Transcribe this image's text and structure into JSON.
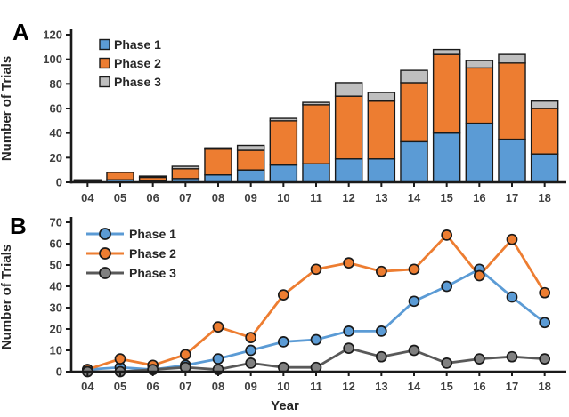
{
  "colors": {
    "phase1_blue": "#5B9BD5",
    "phase2_orange": "#ED7D31",
    "phase3_gray_bar": "#BFBFBF",
    "phase3_gray_line": "#595959",
    "phase3_gray_marker": "#808080",
    "outline_black": "#1a1a1a",
    "tick_text": "#3f3f3f"
  },
  "chart_data": [
    {
      "panel": "A",
      "type": "bar",
      "stacked": true,
      "title": "",
      "ylabel": "Number of Trials",
      "xlabel": "",
      "ylim": [
        0,
        120
      ],
      "ytick_step": 20,
      "grid": false,
      "legend_position": "top-left-inside",
      "categories": [
        "04",
        "05",
        "06",
        "07",
        "08",
        "09",
        "10",
        "11",
        "12",
        "13",
        "14",
        "15",
        "16",
        "17",
        "18"
      ],
      "series": [
        {
          "name": "Phase 1",
          "color": "#5B9BD5",
          "values": [
            1,
            2,
            1,
            3,
            6,
            10,
            14,
            15,
            19,
            19,
            33,
            40,
            48,
            35,
            23
          ]
        },
        {
          "name": "Phase 2",
          "color": "#ED7D31",
          "values": [
            1,
            6,
            3,
            8,
            21,
            16,
            36,
            48,
            51,
            47,
            48,
            64,
            45,
            62,
            37
          ]
        },
        {
          "name": "Phase 3",
          "color": "#BFBFBF",
          "values": [
            0,
            0,
            1,
            2,
            1,
            4,
            2,
            2,
            11,
            7,
            10,
            4,
            6,
            7,
            6
          ]
        }
      ]
    },
    {
      "panel": "B",
      "type": "line",
      "stacked": false,
      "title": "",
      "ylabel": "Number of Trials",
      "xlabel": "Year",
      "ylim": [
        0,
        70
      ],
      "ytick_step": 10,
      "grid": false,
      "legend_position": "top-left-inside",
      "categories": [
        "04",
        "05",
        "06",
        "07",
        "08",
        "09",
        "10",
        "11",
        "12",
        "13",
        "14",
        "15",
        "16",
        "17",
        "18"
      ],
      "series": [
        {
          "name": "Phase 1",
          "color": "#5B9BD5",
          "marker_color": "#5B9BD5",
          "values": [
            1,
            2,
            1,
            3,
            6,
            10,
            14,
            15,
            19,
            19,
            33,
            40,
            48,
            35,
            23
          ]
        },
        {
          "name": "Phase 2",
          "color": "#ED7D31",
          "marker_color": "#ED7D31",
          "values": [
            1,
            6,
            3,
            8,
            21,
            16,
            36,
            48,
            51,
            47,
            48,
            64,
            45,
            62,
            37
          ]
        },
        {
          "name": "Phase 3",
          "color": "#595959",
          "marker_color": "#808080",
          "values": [
            0,
            0,
            1,
            2,
            1,
            4,
            2,
            2,
            11,
            7,
            10,
            4,
            6,
            7,
            6
          ]
        }
      ]
    }
  ]
}
